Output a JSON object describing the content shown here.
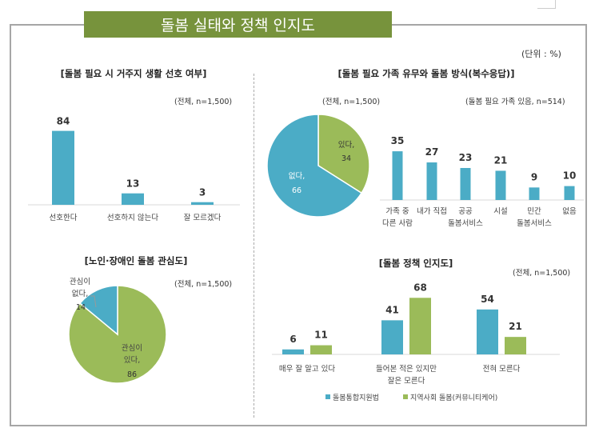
{
  "title": "돌봄 실태와 정책 인지도",
  "unit": "(단위 : %)",
  "colors": {
    "blue": "#4bacc6",
    "green": "#9bbb59",
    "banner": "#77933c"
  },
  "chart_data": [
    {
      "type": "bar",
      "title": "[돌봄 필요 시 거주지 생활 선호 여부]",
      "note": "(전체, n=1,500)",
      "categories": [
        "선호한다",
        "선호하지 않는다",
        "잘 모르겠다"
      ],
      "values": [
        84,
        13,
        3
      ]
    },
    {
      "type": "pie",
      "title": "[돌봄 필요 가족 유무와 돌봄 방식(복수응답)]",
      "note": "(전체, n=1,500)",
      "slices": [
        {
          "label": "있다,",
          "value": 34,
          "color": "#9bbb59"
        },
        {
          "label": "없다,",
          "value": 66,
          "color": "#4bacc6"
        }
      ]
    },
    {
      "type": "bar",
      "note": "(돌봄 필요 가족 있음, n=514)",
      "categories": [
        [
          "가족 중",
          "다른 사람"
        ],
        [
          "내가 직접"
        ],
        [
          "공공",
          "돌봄서비스"
        ],
        [
          "시설"
        ],
        [
          "민간",
          "돌봄서비스"
        ],
        [
          "없음"
        ]
      ],
      "values": [
        35,
        27,
        23,
        21,
        9,
        10
      ]
    },
    {
      "type": "pie",
      "title": "[노인·장애인 돌봄 관심도]",
      "note": "(전체, n=1,500)",
      "slices": [
        {
          "label": [
            "관심이",
            "있다,"
          ],
          "value": 86,
          "color": "#9bbb59"
        },
        {
          "label": [
            "관심이",
            "없다,"
          ],
          "value": 14,
          "color": "#4bacc6"
        }
      ]
    },
    {
      "type": "bar",
      "title": "[돌봄 정책 인지도]",
      "note": "(전체, n=1,500)",
      "categories": [
        [
          "매우 잘 알고 있다"
        ],
        [
          "들어본 적은 있지만",
          "잘은 모른다"
        ],
        [
          "전혀 모른다"
        ]
      ],
      "series": [
        {
          "name": "돌봄통합지원법",
          "values": [
            6,
            41,
            54
          ],
          "color": "#4bacc6"
        },
        {
          "name": "지역사회 돌봄(커뮤니티케어)",
          "values": [
            11,
            68,
            21
          ],
          "color": "#9bbb59"
        }
      ],
      "legend": "bottom"
    }
  ]
}
